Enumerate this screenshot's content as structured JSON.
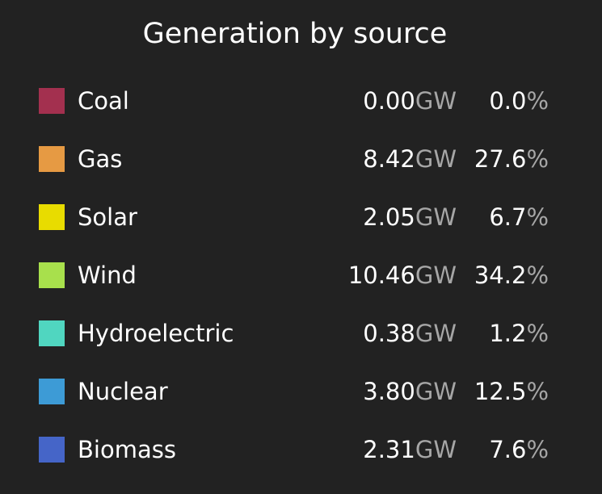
{
  "title": "Generation by source",
  "power_unit": "GW",
  "percent_unit": "%",
  "sources": [
    {
      "name": "Coal",
      "power": "0.00",
      "percent": "0.0",
      "color": "#a3304f"
    },
    {
      "name": "Gas",
      "power": "8.42",
      "percent": "27.6",
      "color": "#e69a43"
    },
    {
      "name": "Solar",
      "power": "2.05",
      "percent": "6.7",
      "color": "#e8dc00"
    },
    {
      "name": "Wind",
      "power": "10.46",
      "percent": "34.2",
      "color": "#a8e04c"
    },
    {
      "name": "Hydroelectric",
      "power": "0.38",
      "percent": "1.2",
      "color": "#50d6c0"
    },
    {
      "name": "Nuclear",
      "power": "3.80",
      "percent": "12.5",
      "color": "#3d9bd6"
    },
    {
      "name": "Biomass",
      "power": "2.31",
      "percent": "7.6",
      "color": "#4565c8"
    }
  ]
}
